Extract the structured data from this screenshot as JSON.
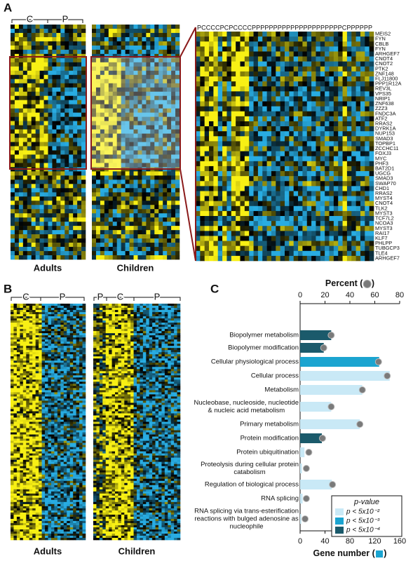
{
  "panels": {
    "A": {
      "letter": "A",
      "groups": [
        "C",
        "P"
      ],
      "labels": [
        "Adults",
        "Children"
      ],
      "columns": "PCCCCPCPCCCCPPPPPPPPPPPPPPPPPPPPPCPPPPPP",
      "genes": [
        "MEIS2",
        "FYN",
        "CBLB",
        "FYN",
        "ARHGEF7",
        "CNOT4",
        "CNOT2",
        "PTK2",
        "ZNF148",
        "FLJ11800",
        "PPP1R12A",
        "REV3L",
        "VPS35",
        "NRIP1",
        "ZNF638",
        "ZZZ3",
        "FNDC3A",
        "ATF2",
        "RRAS2",
        "DYRK1A",
        "NUP153",
        "SMAD3",
        "TOPBP1",
        "ZCCHC11",
        "FOXJ3",
        "MYC",
        "PHF3",
        "BAT2D1",
        "UGCG",
        "SMAD3",
        "SWAP70",
        "CHD1",
        "RRAS2",
        "MYST4",
        "CNOT4",
        "TLK2",
        "MYST3",
        "TCF7L2",
        "NCOA3",
        "MYST3",
        "RAI17",
        "KLF7",
        "PHLPP",
        "TUBGCP3",
        "TLE4",
        "ARHGEF7"
      ]
    },
    "B": {
      "letter": "B",
      "adult_groups": [
        "C",
        "P"
      ],
      "child_groups": [
        "P",
        "C",
        "P"
      ],
      "labels": [
        "Adults",
        "Children"
      ]
    }
  },
  "chart_data": {
    "type": "bar",
    "letter": "C",
    "categories": [
      "Biopolymer metabolism",
      "Biopolymer modification",
      "Cellular physiological process",
      "Cellular process",
      "Metabolism",
      "Nucleobase, nucleoside, nucleotide\n& nucleic acid metabolism",
      "Primary metabolism",
      "Protein modification",
      "Protein ubiquitination",
      "Proteolysis during cellular protein\ncatabolism",
      "Regulation of biological process",
      "RNA splicing",
      "RNA splicing via trans-esterification\nreactions with bulged adenosine as\nnucleophile"
    ],
    "series": [
      {
        "name": "Gene number",
        "values": [
          50,
          38,
          127,
          144,
          100,
          50,
          96,
          35,
          7,
          3,
          51,
          4,
          2
        ],
        "colors": [
          "#1b5a6b",
          "#1b5a6b",
          "#1ba4d0",
          "#c9e9f6",
          "#c9e9f6",
          "#c9e9f6",
          "#c9e9f6",
          "#1b5a6b",
          "#c9e9f6",
          "#c9e9f6",
          "#c9e9f6",
          "#c9e9f6",
          "#c9e9f6"
        ]
      },
      {
        "name": "Percent",
        "axis": "x2",
        "color": "#7a7a7a",
        "values": [
          25,
          19,
          63,
          70,
          50,
          25,
          48,
          18,
          7,
          5,
          26,
          5,
          4
        ]
      }
    ],
    "xlabel": [
      "Gene number (",
      ")"
    ],
    "x2label": [
      "Percent (",
      ")"
    ],
    "xlim": [
      0,
      160
    ],
    "xticks": [
      0,
      40,
      80,
      120,
      160
    ],
    "x2lim": [
      0,
      80
    ],
    "x2ticks": [
      0,
      20,
      40,
      60,
      80
    ],
    "legend": {
      "title": "p-value",
      "position": "lower right",
      "items": [
        {
          "label": "p < 5x10⁻²",
          "color": "#c9e9f6"
        },
        {
          "label": "p < 5x10⁻³",
          "color": "#1ba4d0"
        },
        {
          "label": "p < 5x10⁻⁴",
          "color": "#1b5a6b"
        }
      ]
    }
  }
}
